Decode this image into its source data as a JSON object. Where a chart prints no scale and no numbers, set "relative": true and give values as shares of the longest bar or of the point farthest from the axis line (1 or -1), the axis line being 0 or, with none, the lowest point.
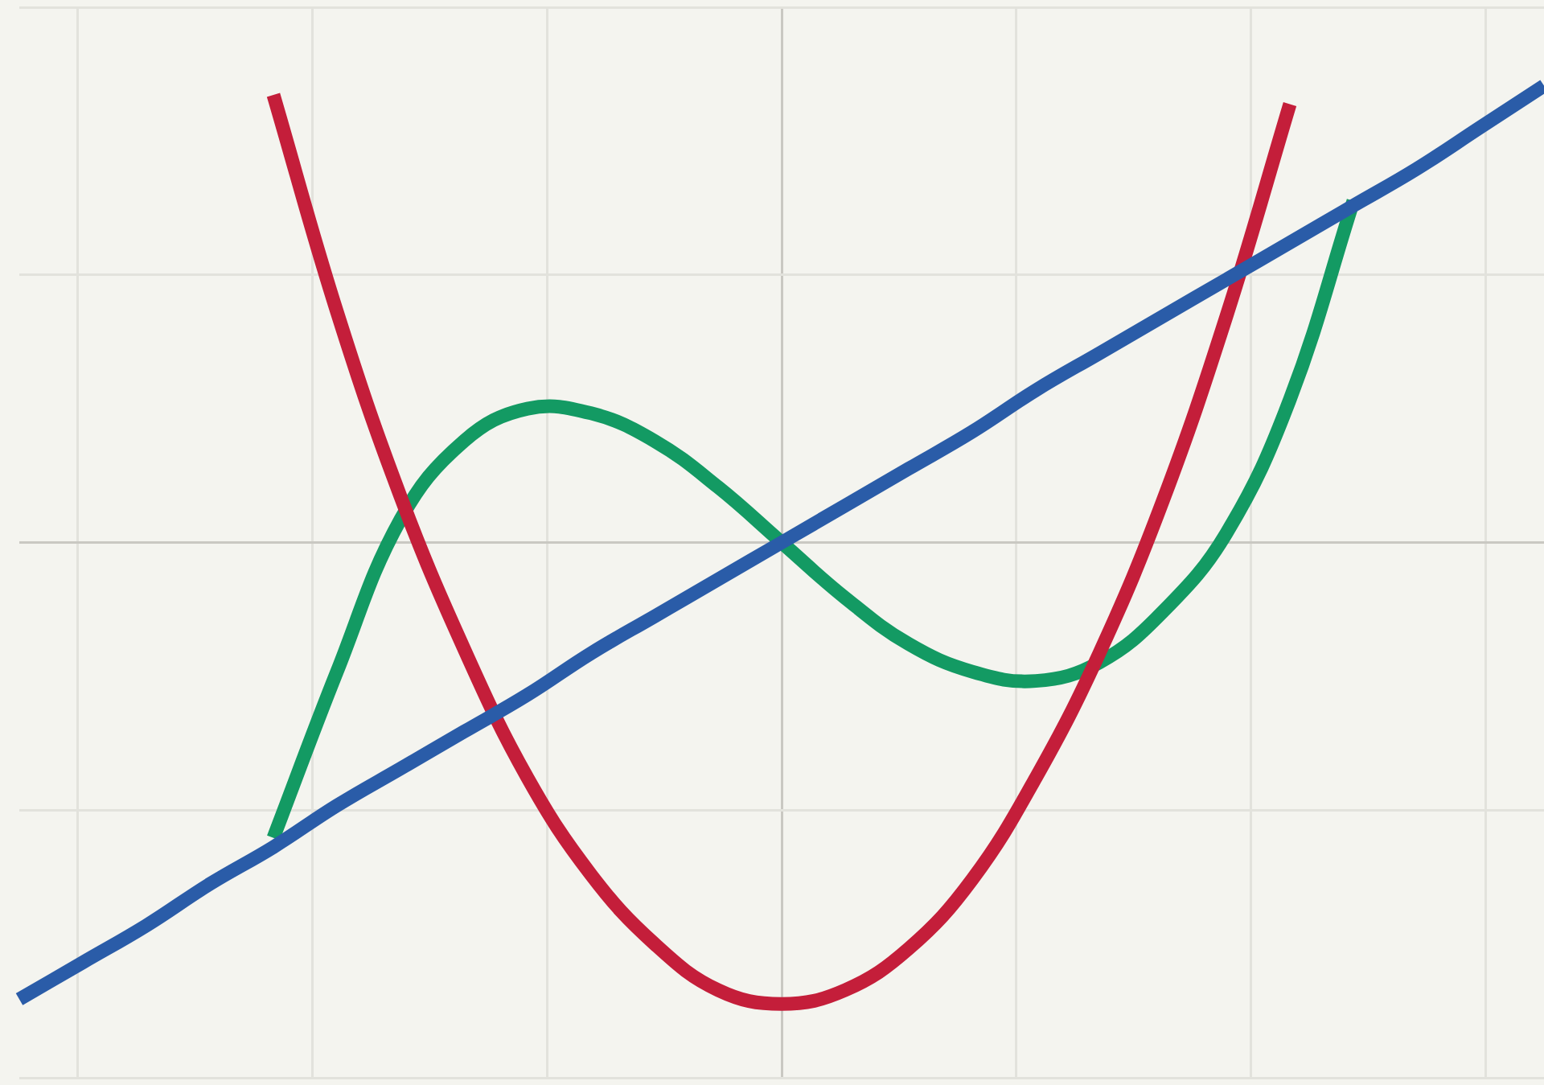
{
  "chart_data": {
    "type": "line",
    "relative": true,
    "grid": true,
    "legend": false,
    "marker": "none",
    "line_style": "solid",
    "categories": [
      null,
      null,
      null,
      null,
      null,
      null,
      null,
      null,
      null,
      null,
      null,
      null,
      null,
      null,
      null,
      null,
      null,
      null,
      null,
      null,
      null,
      null,
      null,
      null,
      null
    ],
    "series": [
      {
        "color": "#2a5ca8",
        "values": [
          -0.99,
          -0.91,
          -0.83,
          -0.74,
          -0.66,
          -0.57,
          -0.49,
          -0.41,
          -0.33,
          -0.24,
          -0.16,
          -0.08,
          0,
          0.08,
          0.16,
          0.24,
          0.33,
          0.41,
          0.49,
          0.57,
          0.65,
          0.73,
          0.81,
          0.9,
          0.99
        ]
      },
      {
        "color": "#c41e3a",
        "values": [
          null,
          null,
          null,
          null,
          0.97,
          0.5,
          0.1,
          -0.23,
          -0.51,
          -0.72,
          -0.87,
          -0.97,
          -1,
          -0.97,
          -0.88,
          -0.73,
          -0.51,
          -0.24,
          0.09,
          0.49,
          0.95,
          null,
          null,
          null,
          null
        ]
      },
      {
        "color": "#139a63",
        "values": [
          null,
          null,
          null,
          null,
          -0.64,
          -0.28,
          0.05,
          0.22,
          0.29,
          0.28,
          0.22,
          0.12,
          0,
          -0.12,
          -0.22,
          -0.28,
          -0.3,
          -0.26,
          -0.15,
          0.02,
          0.31,
          0.74,
          null,
          null,
          null
        ]
      }
    ]
  }
}
